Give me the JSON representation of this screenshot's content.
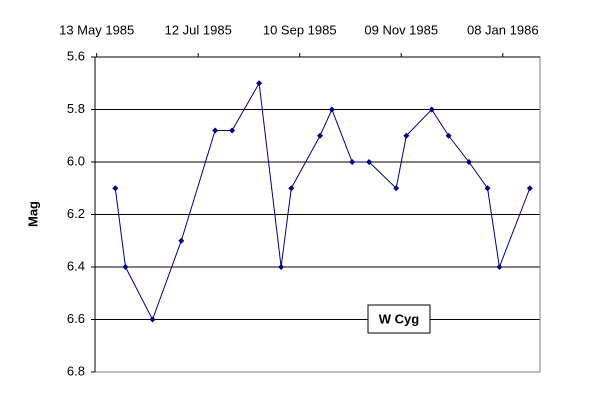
{
  "chart_data": {
    "type": "line",
    "y_label": "Mag",
    "x": [
      "1985-05-24",
      "1985-05-30",
      "1985-06-15",
      "1985-07-02",
      "1985-07-22",
      "1985-08-01",
      "1985-08-17",
      "1985-08-30",
      "1985-09-05",
      "1985-09-22",
      "1985-09-29",
      "1985-10-11",
      "1985-10-21",
      "1985-11-06",
      "1985-11-12",
      "1985-11-27",
      "1985-12-07",
      "1985-12-19",
      "1985-12-30",
      "1986-01-06",
      "1986-01-24"
    ],
    "series": [
      {
        "name": "W Cyg",
        "color": "#000080",
        "values": [
          6.1,
          6.4,
          6.6,
          6.3,
          5.88,
          5.88,
          5.7,
          6.4,
          6.1,
          5.9,
          5.8,
          6.0,
          6.0,
          6.1,
          5.9,
          5.8,
          5.9,
          6.0,
          6.1,
          6.4,
          6.1
        ]
      }
    ],
    "xlim": [
      "1985-05-12",
      "1986-01-30"
    ],
    "xticks": [
      {
        "value": "1985-05-13",
        "label": "13 May 1985"
      },
      {
        "value": "1985-07-12",
        "label": "12 Jul 1985"
      },
      {
        "value": "1985-09-10",
        "label": "10 Sep 1985"
      },
      {
        "value": "1985-11-09",
        "label": "09 Nov 1985"
      },
      {
        "value": "1986-01-08",
        "label": "08 Jan 1986"
      }
    ],
    "x_axis_position": "top",
    "ylim": [
      5.6,
      6.8
    ],
    "y_reversed": true,
    "yticks": [
      5.6,
      5.8,
      {
        "value": 6,
        "label": "6.0"
      },
      6.2,
      6.4,
      6.6,
      6.8
    ],
    "grid": true,
    "legend": "lower-center"
  }
}
